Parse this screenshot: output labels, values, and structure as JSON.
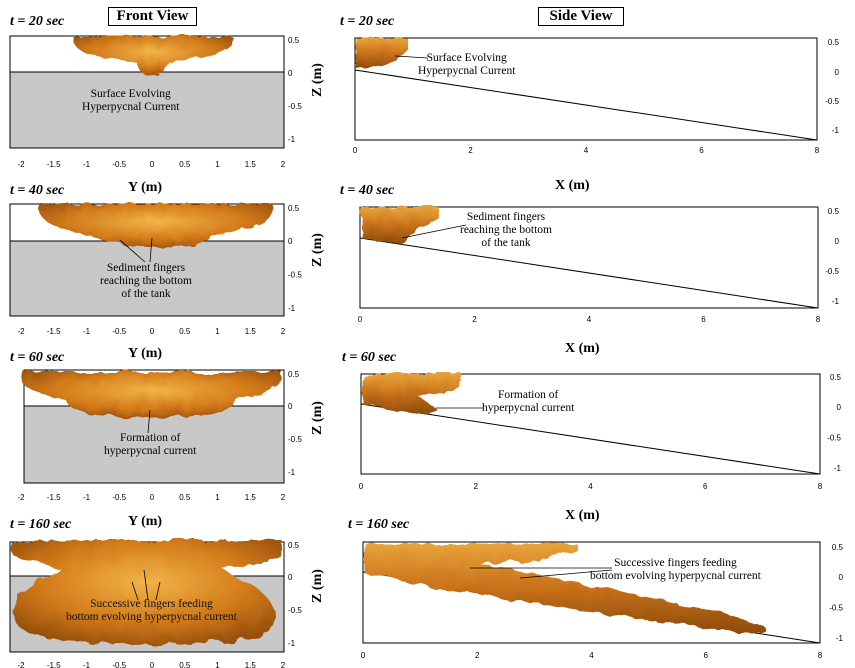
{
  "headers": {
    "front": "Front View",
    "side": "Side View"
  },
  "axes": {
    "front_x": "Y (m)",
    "side_x": "X (m)",
    "z": "Z (m)"
  },
  "ticks": {
    "front_x": [
      "-2",
      "-1.5",
      "-1",
      "-0.5",
      "0",
      "0.5",
      "1",
      "1.5",
      "2"
    ],
    "front_z": [
      "0.5",
      "0",
      "-0.5",
      "-1"
    ],
    "side_x": [
      "0",
      "2",
      "4",
      "6",
      "8"
    ],
    "side_z": [
      "0.5",
      "0",
      "-0.5",
      "-1"
    ]
  },
  "rows": [
    {
      "time": "t = 20 sec",
      "front_note": [
        "Surface Evolving",
        "Hyperpycnal Current"
      ],
      "side_note": [
        "Surface Evolving",
        "Hyperpycnal Current"
      ]
    },
    {
      "time": "t = 40 sec",
      "front_note": [
        "Sediment fingers",
        "reaching the bottom",
        "of the tank"
      ],
      "side_note": [
        "Sediment fingers",
        "reaching the bottom",
        "of the tank"
      ]
    },
    {
      "time": "t = 60 sec",
      "front_note": [
        "Formation of",
        "hyperpycnal current"
      ],
      "side_note": [
        "Formation of",
        "hyperpycnal current"
      ]
    },
    {
      "time": "t = 160 sec",
      "front_note": [
        "Successive fingers feeding",
        "bottom evolving hyperpycnal current"
      ],
      "side_note": [
        "Successive fingers feeding",
        "bottom evolving hyperpycnal current"
      ]
    }
  ],
  "colors": {
    "plume_dark": "#8a4a08",
    "plume_mid": "#d07a18",
    "plume_light": "#f0b040",
    "tank": "#c8c8c8"
  }
}
